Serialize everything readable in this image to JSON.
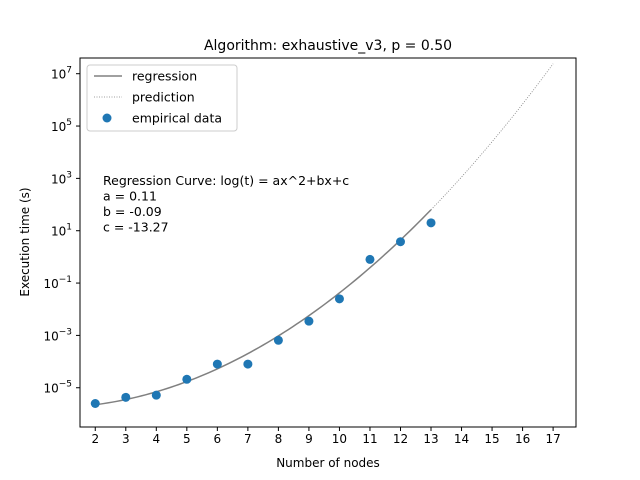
{
  "chart_data": {
    "type": "scatter",
    "title": "Algorithm: exhaustive_v3, p = 0.50",
    "xlabel": "Number of nodes",
    "ylabel": "Execution time (s)",
    "xlim": [
      1.5,
      17.75
    ],
    "ylim_log10": [
      -6.5,
      7.6
    ],
    "y_scale": "log",
    "x_ticks": [
      2,
      3,
      4,
      5,
      6,
      7,
      8,
      9,
      10,
      11,
      12,
      13,
      14,
      15,
      16,
      17
    ],
    "y_ticks": [
      {
        "exp": -5,
        "base": "10",
        "sup": "−5"
      },
      {
        "exp": -3,
        "base": "10",
        "sup": "−3"
      },
      {
        "exp": -1,
        "base": "10",
        "sup": "−1"
      },
      {
        "exp": 1,
        "base": "10",
        "sup": "1"
      },
      {
        "exp": 3,
        "base": "10",
        "sup": "3"
      },
      {
        "exp": 5,
        "base": "10",
        "sup": "5"
      },
      {
        "exp": 7,
        "base": "10",
        "sup": "7"
      }
    ],
    "legend": {
      "placement": "top-left",
      "entries": [
        {
          "label": "regression",
          "style": "line"
        },
        {
          "label": "prediction",
          "style": "dotted"
        },
        {
          "label": "empirical data",
          "style": "marker"
        }
      ]
    },
    "annotation": [
      "Regression Curve: log(t) = ax^2+bx+c",
      "a = 0.11",
      "b = -0.09",
      "c = -13.27"
    ],
    "coefficients": {
      "a": 0.11,
      "b": -0.09,
      "c": -13.27
    },
    "regression_range": [
      2,
      13
    ],
    "prediction_range": [
      13,
      17
    ],
    "series": [
      {
        "label": "empirical data",
        "points": [
          {
            "x": 2,
            "y": 2.5e-06
          },
          {
            "x": 3,
            "y": 4.3e-06
          },
          {
            "x": 4,
            "y": 5.2e-06
          },
          {
            "x": 5,
            "y": 2.1e-05
          },
          {
            "x": 6,
            "y": 8e-05
          },
          {
            "x": 7,
            "y": 8e-05
          },
          {
            "x": 8,
            "y": 0.00065
          },
          {
            "x": 9,
            "y": 0.0035
          },
          {
            "x": 10,
            "y": 0.025
          },
          {
            "x": 11,
            "y": 0.8
          },
          {
            "x": 12,
            "y": 3.8
          },
          {
            "x": 13,
            "y": 20
          }
        ]
      }
    ],
    "colors": {
      "marker": "#1f77b4",
      "regression": "#808080",
      "prediction": "#808080"
    },
    "grid": false
  }
}
